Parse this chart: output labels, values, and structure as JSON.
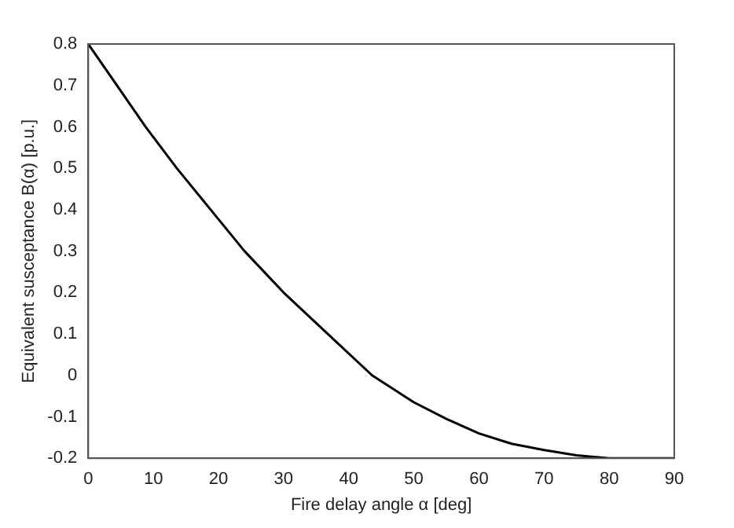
{
  "chart_data": {
    "type": "line",
    "xlabel": "Fire delay angle α [deg]",
    "ylabel": "Equivalent susceptance B(α) [p.u.]",
    "series": [
      {
        "color": "#000000",
        "x": [
          0,
          4.4,
          8.8,
          13.6,
          18.8,
          24,
          30,
          36.8,
          43.6,
          50,
          55,
          60,
          65,
          70,
          75,
          80,
          85,
          90
        ],
        "values": [
          0.8,
          0.7,
          0.6,
          0.5,
          0.4,
          0.3,
          0.2,
          0.1,
          0,
          -0.065,
          -0.105,
          -0.14,
          -0.165,
          -0.18,
          -0.193,
          -0.2,
          -0.2,
          -0.2
        ]
      }
    ],
    "xlim": [
      0,
      90
    ],
    "xticks": [
      0,
      10,
      20,
      30,
      40,
      50,
      60,
      70,
      80,
      90
    ],
    "ylim": [
      -0.2,
      0.8
    ],
    "yticks": [
      -0.2,
      -0.1,
      0,
      0.1,
      0.2,
      0.3,
      0.4,
      0.5,
      0.6,
      0.7,
      0.8
    ],
    "grid": false,
    "legend": false,
    "marker": "none",
    "line_style": "solid"
  }
}
